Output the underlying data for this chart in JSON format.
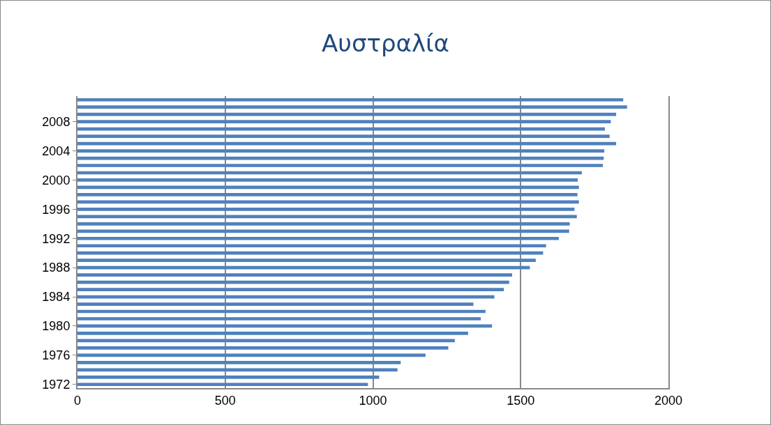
{
  "chart_data": {
    "type": "bar",
    "orientation": "horizontal",
    "title": "Αυστραλία",
    "categories": [
      null,
      null,
      null,
      "2008",
      null,
      null,
      null,
      "2004",
      null,
      null,
      null,
      "2000",
      null,
      null,
      null,
      "1996",
      null,
      null,
      null,
      "1992",
      null,
      null,
      null,
      "1988",
      null,
      null,
      null,
      "1984",
      null,
      null,
      null,
      "1980",
      null,
      null,
      null,
      "1976",
      null,
      null,
      null,
      "1972"
    ],
    "values": [
      1847,
      1860,
      1823,
      1805,
      1785,
      1801,
      1823,
      1783,
      1781,
      1778,
      1707,
      1693,
      1697,
      1692,
      1697,
      1682,
      1690,
      1666,
      1664,
      1629,
      1586,
      1576,
      1551,
      1531,
      1471,
      1461,
      1443,
      1411,
      1340,
      1381,
      1365,
      1403,
      1322,
      1277,
      1255,
      1178,
      1094,
      1083,
      1021,
      983
    ],
    "color": "#4f81bd",
    "xlim": [
      0,
      2000
    ],
    "xticks": [
      0,
      500,
      1000,
      1500,
      2000
    ],
    "grid": "x"
  }
}
